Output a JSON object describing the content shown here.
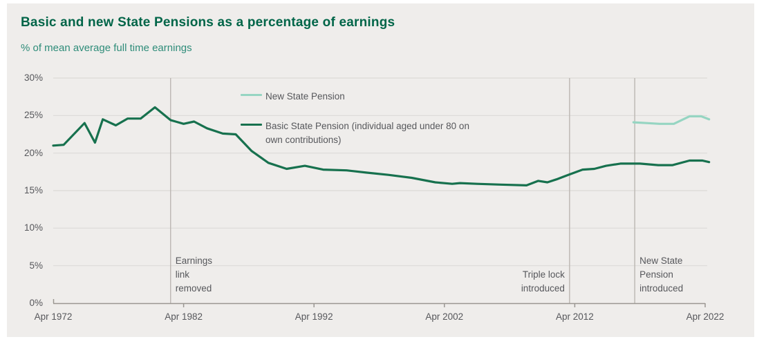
{
  "page": {
    "title": "Basic and new State Pensions as a percentage of earnings",
    "subtitle": "% of mean average full time earnings"
  },
  "colors": {
    "page_background": "#ffffff",
    "panel_background": "#efedeb",
    "title_text": "#006548",
    "subtitle_text": "#2e8c79",
    "label_text": "#56575b",
    "gridline": "#dcdad7",
    "axis": "#9a9691",
    "event_line": "#bbb6b1",
    "series_new": "#96d5c2",
    "series_basic": "#17714e"
  },
  "chart_data": {
    "type": "line",
    "title": "Basic and new State Pensions as a percentage of earnings",
    "subtitle": "% of mean average full time earnings",
    "grid": "horizontal",
    "legend_position": "inside-top-center",
    "x_axis": {
      "min": 1972,
      "max": 2022.3,
      "ticks": [
        {
          "year": 1972,
          "label": "Apr 1972"
        },
        {
          "year": 1982,
          "label": "Apr 1982"
        },
        {
          "year": 1992,
          "label": "Apr 1992"
        },
        {
          "year": 2002,
          "label": "Apr 2002"
        },
        {
          "year": 2012,
          "label": "Apr 2012"
        },
        {
          "year": 2022,
          "label": "Apr 2022"
        }
      ]
    },
    "y_axis": {
      "min": 0,
      "max": 30,
      "ticks": [
        {
          "value": 0,
          "label": "0%"
        },
        {
          "value": 5,
          "label": "5%"
        },
        {
          "value": 10,
          "label": "10%"
        },
        {
          "value": 15,
          "label": "15%"
        },
        {
          "value": 20,
          "label": "20%"
        },
        {
          "value": 25,
          "label": "25%"
        },
        {
          "value": 30,
          "label": "30%"
        }
      ]
    },
    "series": [
      {
        "name": "New State Pension",
        "color": "#96d5c2",
        "points": [
          [
            2016.5,
            24.1
          ],
          [
            2017.5,
            24.0
          ],
          [
            2018.5,
            23.9
          ],
          [
            2019.6,
            23.9
          ],
          [
            2020.8,
            24.9
          ],
          [
            2021.7,
            24.9
          ],
          [
            2022.3,
            24.5
          ]
        ]
      },
      {
        "name": "Basic State Pension (individual aged under 80 on own contributions)",
        "color": "#17714e",
        "points": [
          [
            1972.0,
            21.0
          ],
          [
            1972.8,
            21.1
          ],
          [
            1974.4,
            24.0
          ],
          [
            1975.2,
            21.4
          ],
          [
            1975.8,
            24.5
          ],
          [
            1976.8,
            23.7
          ],
          [
            1977.7,
            24.6
          ],
          [
            1978.7,
            24.6
          ],
          [
            1979.8,
            26.1
          ],
          [
            1981.0,
            24.4
          ],
          [
            1982.0,
            23.9
          ],
          [
            1982.8,
            24.2
          ],
          [
            1983.8,
            23.3
          ],
          [
            1985.0,
            22.6
          ],
          [
            1986.0,
            22.5
          ],
          [
            1987.2,
            20.3
          ],
          [
            1988.5,
            18.7
          ],
          [
            1989.9,
            17.9
          ],
          [
            1991.3,
            18.3
          ],
          [
            1992.7,
            17.8
          ],
          [
            1994.5,
            17.7
          ],
          [
            1996.0,
            17.4
          ],
          [
            1997.7,
            17.1
          ],
          [
            1999.5,
            16.7
          ],
          [
            2001.3,
            16.1
          ],
          [
            2002.6,
            15.9
          ],
          [
            2003.2,
            16.0
          ],
          [
            2004.5,
            15.9
          ],
          [
            2006.3,
            15.8
          ],
          [
            2008.3,
            15.7
          ],
          [
            2009.2,
            16.3
          ],
          [
            2009.9,
            16.1
          ],
          [
            2010.6,
            16.5
          ],
          [
            2011.5,
            17.1
          ],
          [
            2012.6,
            17.8
          ],
          [
            2013.5,
            17.9
          ],
          [
            2014.4,
            18.3
          ],
          [
            2015.5,
            18.6
          ],
          [
            2017.0,
            18.6
          ],
          [
            2018.4,
            18.4
          ],
          [
            2019.5,
            18.4
          ],
          [
            2020.8,
            19.0
          ],
          [
            2021.8,
            19.0
          ],
          [
            2022.3,
            18.8
          ]
        ]
      }
    ],
    "legend": {
      "items": [
        {
          "series": "New State Pension",
          "lines": [
            "New State Pension"
          ]
        },
        {
          "series": "Basic State Pension",
          "lines": [
            "Basic State Pension (individual aged under 80 on",
            "own contributions)"
          ]
        }
      ]
    },
    "annotations": [
      {
        "year": 1981.0,
        "label": "Earnings link removed",
        "lines": [
          "Earnings",
          "link",
          "removed"
        ],
        "align": "left"
      },
      {
        "year": 2011.6,
        "label": "Triple lock introduced",
        "lines": [
          "Triple lock",
          "introduced"
        ],
        "align": "right"
      },
      {
        "year": 2016.6,
        "label": "New State Pension introduced",
        "lines": [
          "New State",
          "Pension",
          "introduced"
        ],
        "align": "left"
      }
    ]
  }
}
